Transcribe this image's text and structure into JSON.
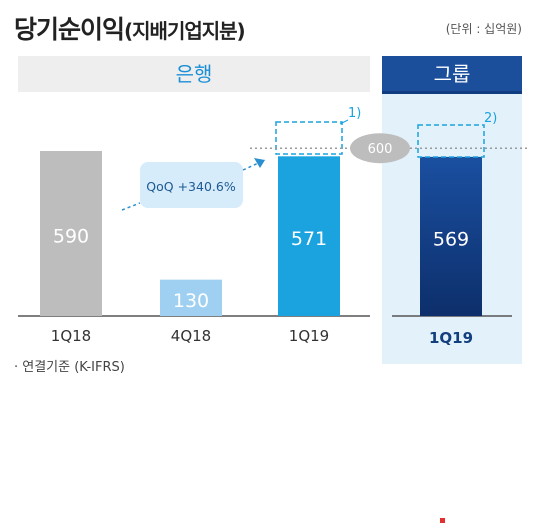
{
  "page": {
    "title_main": "당기순이익",
    "title_sub": "(지배기업지분)",
    "unit": "(단위 : 십억원)",
    "bank_label": "은행",
    "group_label": "그룹",
    "footnote": "· 연결기준 (K-IFRS)",
    "colors": {
      "bank_header": "#1a8fd6",
      "group_header": "#1b4f9c",
      "accent": "#00a0e0"
    }
  },
  "chart_data": [
    {
      "type": "bar",
      "panel": "은행",
      "categories": [
        "1Q18",
        "4Q18",
        "1Q19"
      ],
      "values": [
        590,
        130,
        571
      ],
      "colors": [
        "#bdbdbd",
        "#9fd0f2",
        "#1aa3de"
      ],
      "annotations": [
        {
          "text": "QoQ +340.6%"
        },
        {
          "text": "1)"
        }
      ],
      "ylim": [
        0,
        700
      ]
    },
    {
      "type": "bar",
      "panel": "그룹",
      "categories": [
        "1Q19"
      ],
      "values": [
        569
      ],
      "reference_line": {
        "value": 600,
        "label": "600"
      },
      "annotations": [
        {
          "text": "2)"
        }
      ],
      "ylim": [
        0,
        700
      ]
    }
  ]
}
